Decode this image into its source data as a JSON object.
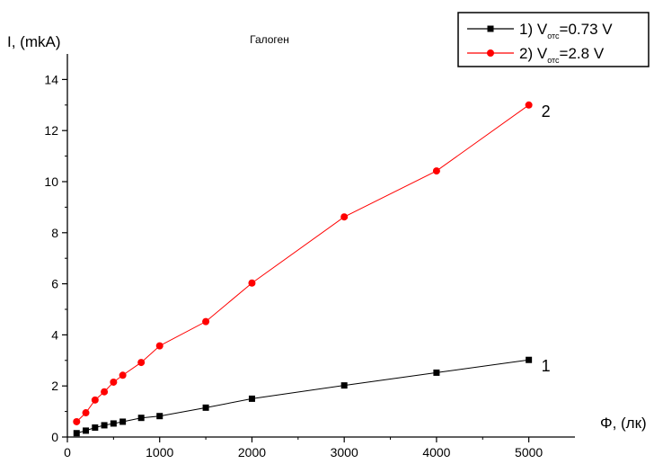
{
  "chart_data": {
    "type": "line",
    "title": "Галоген",
    "xlabel": "Φ, (лк)",
    "ylabel": "I, (mkA)",
    "xlim": [
      0,
      5500
    ],
    "ylim": [
      0,
      15
    ],
    "x_ticks": [
      0,
      1000,
      2000,
      3000,
      4000,
      5000
    ],
    "y_ticks": [
      0,
      2,
      4,
      6,
      8,
      10,
      12,
      14
    ],
    "grid": false,
    "legend_position": "top-right",
    "series": [
      {
        "name": "1) V_отс=0.73 V",
        "legend_main_1": "1) V",
        "legend_sub": "отс",
        "legend_main_2": "=0.73 V",
        "end_label": "1",
        "color": "#000000",
        "marker": "square",
        "x": [
          100,
          200,
          300,
          400,
          500,
          600,
          800,
          1000,
          1500,
          2000,
          3000,
          4000,
          5000
        ],
        "y": [
          0.15,
          0.25,
          0.37,
          0.46,
          0.53,
          0.6,
          0.75,
          0.82,
          1.15,
          1.5,
          2.02,
          2.52,
          3.02
        ]
      },
      {
        "name": "2) V_отс=2.8 V",
        "legend_main_1": "2) V",
        "legend_sub": "отс",
        "legend_main_2": "=2.8 V",
        "end_label": "2",
        "color": "#ff0000",
        "marker": "circle",
        "x": [
          100,
          200,
          300,
          400,
          500,
          600,
          800,
          1000,
          1500,
          2000,
          3000,
          4000,
          5000
        ],
        "y": [
          0.6,
          0.95,
          1.45,
          1.77,
          2.15,
          2.42,
          2.92,
          3.57,
          4.52,
          6.03,
          8.62,
          10.42,
          13.0
        ]
      }
    ]
  }
}
